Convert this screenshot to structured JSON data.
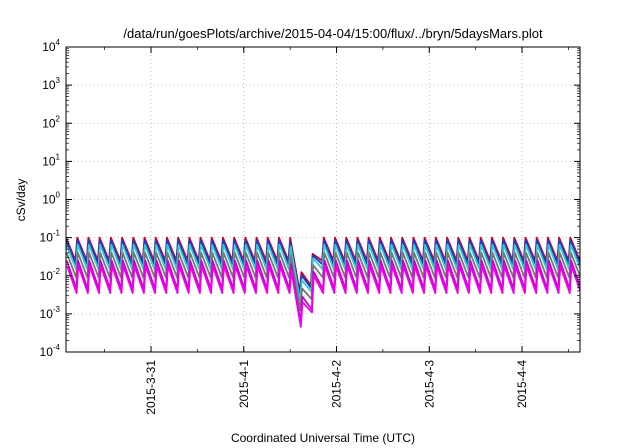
{
  "chart_data": {
    "type": "line",
    "title": "/data/run/goesPlots/archive/2015-04-04/15:00/flux/../bryn/5daysMars.plot",
    "xlabel": "Coordinated Universal Time (UTC)",
    "ylabel": "cSv/day",
    "yscale": "log",
    "ylim": [
      0.0001,
      10000
    ],
    "yticks": [
      {
        "base": "10",
        "exp": "4"
      },
      {
        "base": "10",
        "exp": "3"
      },
      {
        "base": "10",
        "exp": "2"
      },
      {
        "base": "10",
        "exp": "1"
      },
      {
        "base": "10",
        "exp": "0"
      },
      {
        "base": "10",
        "exp": "-1"
      },
      {
        "base": "10",
        "exp": "-2"
      },
      {
        "base": "10",
        "exp": "-3"
      },
      {
        "base": "10",
        "exp": "-4"
      }
    ],
    "xlim": [
      "2015-03-30T02:00",
      "2015-04-04T15:00"
    ],
    "xticks": [
      "2015-3-31",
      "2015-4-1",
      "2015-4-2",
      "2015-4-3",
      "2015-4-4"
    ],
    "grid": true,
    "legend": "none",
    "sawtooth_period_hours": 2.9,
    "series": [
      {
        "color": "#cc0033",
        "peak": 0.1,
        "trough": 0.025
      },
      {
        "color": "#1a3fcf",
        "peak": 0.085,
        "trough": 0.02
      },
      {
        "color": "#33cccc",
        "peak": 0.065,
        "trough": 0.015
      },
      {
        "color": "#777777",
        "peak": 0.04,
        "trough": 0.009
      },
      {
        "color": "#cc00cc",
        "peak": 0.025,
        "trough": 0.0045
      },
      {
        "color": "#ee00ee",
        "peak": 0.018,
        "trough": 0.0035
      }
    ],
    "dip": {
      "start": "2015-04-01T12:00",
      "minimum": "2015-04-01T16:00",
      "end": "2015-04-01T18:30",
      "min_factor": 0.1
    }
  }
}
